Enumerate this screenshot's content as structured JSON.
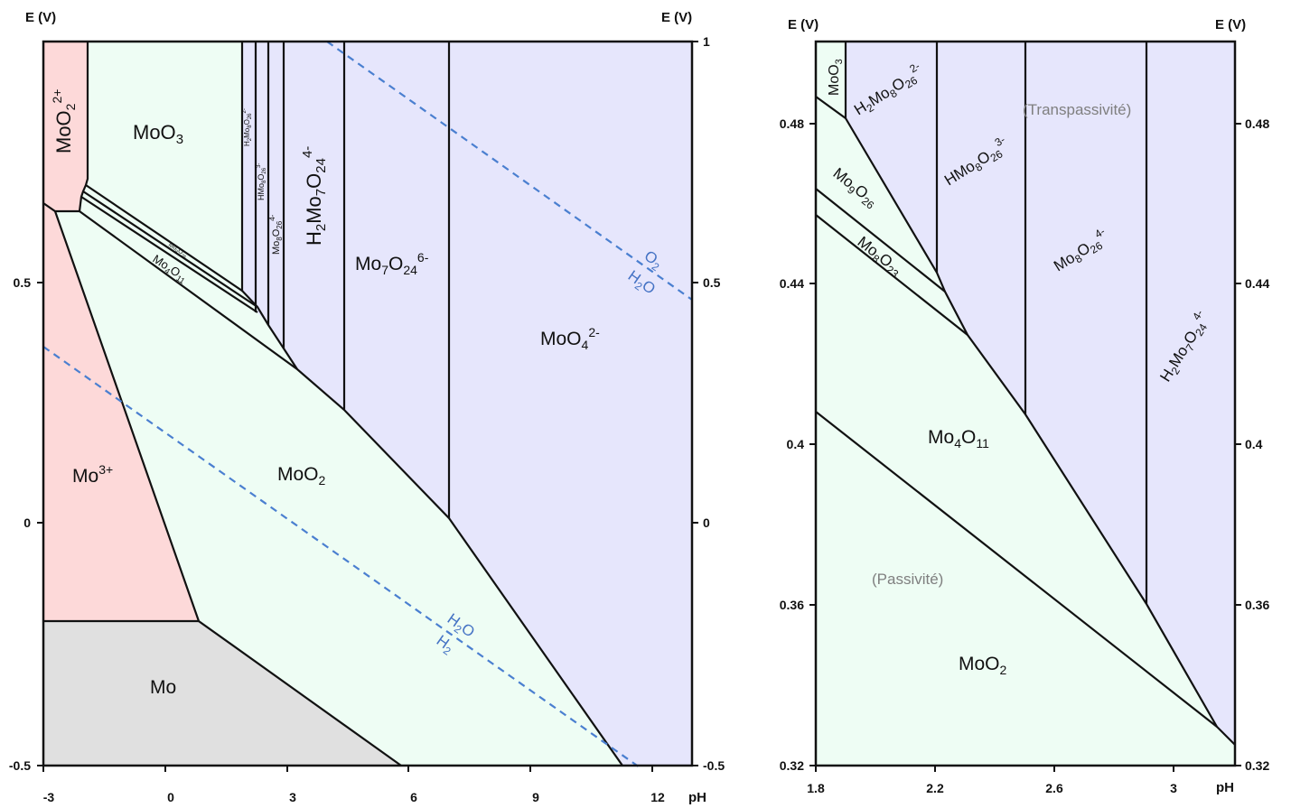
{
  "colors": {
    "acid_cation": "#fdd9d9",
    "oxide": "#eefdf4",
    "anion": "#e6e6fc",
    "metal": "#e0e0e0",
    "water_line": "#4a7fd0"
  },
  "left_diagram": {
    "y_axis_label_left": "E (V)",
    "y_axis_label_right": "E (V)",
    "x_axis_label": "pH",
    "x_ticks": [
      "-3",
      "0",
      "3",
      "6",
      "9",
      "12"
    ],
    "y_ticks_left": [
      "0.5",
      "0",
      "-0.5"
    ],
    "y_ticks_right": [
      "1",
      "0.5",
      "0",
      "-0.5"
    ],
    "regions": {
      "moo2_2plus": "MoO2 2+",
      "moo3": "MoO3",
      "h2mo8o26": "H2Mo8O26 2-",
      "hmo8o26": "HMo8O26 3-",
      "mo8o26": "Mo8O26 4-",
      "h2mo7o24": "H2Mo7O24 4-",
      "mo7o24": "Mo7O24 6-",
      "moo4": "MoO4 2-",
      "mo3plus": "Mo3+",
      "moo2": "MoO2",
      "mo": "Mo",
      "mo4o11": "Mo4O11",
      "mo9o26_small": "Mo9O26"
    },
    "water_lines": {
      "o2": "O2",
      "h2o_upper": "H2O",
      "h2o_lower": "H2O",
      "h2": "H2"
    }
  },
  "right_diagram": {
    "y_axis_label_left": "E (V)",
    "y_axis_label_right": "E (V)",
    "x_axis_label": "pH",
    "x_ticks": [
      "1.8",
      "2.2",
      "2.6",
      "3"
    ],
    "y_ticks_left": [
      "0.48",
      "0.44",
      "0.4",
      "0.36",
      "0.32"
    ],
    "y_ticks_right": [
      "0.48",
      "0.44",
      "0.4",
      "0.36",
      "0.32"
    ],
    "regions": {
      "moo3": "MoO3",
      "h2mo8o26": "H2Mo8O26 2-",
      "hmo8o26": "HMo8O26 3-",
      "mo8o26": "Mo8O26 4-",
      "h2mo7o24": "H2Mo7O24 4-",
      "mo9o26": "Mo9O26",
      "mo8o23": "Mo8O23",
      "mo4o11": "Mo4O11",
      "moo2": "MoO2"
    },
    "annotations": {
      "transpassivity": "(Transpassivité)",
      "passivity": "(Passivité)"
    }
  }
}
